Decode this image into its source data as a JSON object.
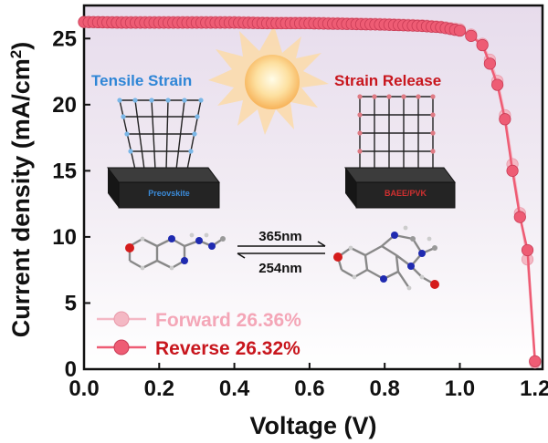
{
  "chart_data": {
    "type": "line",
    "xlabel": "Voltage (V)",
    "ylabel": "Current density (mA/cm2)",
    "xlim": [
      0.0,
      1.22
    ],
    "ylim": [
      0,
      27.5
    ],
    "x_ticks": [
      "0.0",
      "0.2",
      "0.4",
      "0.6",
      "0.8",
      "1.0",
      "1.2"
    ],
    "y_ticks": [
      "0",
      "5",
      "10",
      "15",
      "20",
      "25"
    ],
    "grid": false,
    "legend_position": "bottom-left",
    "series": [
      {
        "name": "Forward 26.36%",
        "color": "#f4b8c4",
        "x": [
          0.0,
          0.1,
          0.2,
          0.3,
          0.4,
          0.5,
          0.6,
          0.7,
          0.8,
          0.9,
          0.95,
          1.0,
          1.03,
          1.06,
          1.08,
          1.1,
          1.12,
          1.14,
          1.16,
          1.18,
          1.2
        ],
        "y": [
          26.25,
          26.25,
          26.25,
          26.25,
          26.25,
          26.2,
          26.2,
          26.15,
          26.1,
          26.0,
          25.9,
          25.7,
          25.3,
          24.6,
          23.4,
          21.8,
          19.2,
          15.5,
          11.8,
          8.3,
          0.5
        ]
      },
      {
        "name": "Reverse 26.32%",
        "color": "#ee5c74",
        "x": [
          0.0,
          0.1,
          0.2,
          0.3,
          0.4,
          0.5,
          0.6,
          0.7,
          0.8,
          0.9,
          0.95,
          1.0,
          1.03,
          1.06,
          1.08,
          1.1,
          1.12,
          1.14,
          1.16,
          1.18,
          1.2
        ],
        "y": [
          26.25,
          26.2,
          26.2,
          26.2,
          26.2,
          26.15,
          26.15,
          26.1,
          26.05,
          25.95,
          25.85,
          25.6,
          25.2,
          24.5,
          23.1,
          21.5,
          18.9,
          15.0,
          11.5,
          9.0,
          0.6
        ]
      }
    ]
  },
  "inset": {
    "left_title": "Tensile Strain",
    "right_title": "Strain Release",
    "left_box": "Preovskite",
    "right_box": "BAEE/PVK",
    "arrow_top": "365nm",
    "arrow_bottom": "254nm",
    "left_title_color": "#2f86d6",
    "right_title_color": "#c8161d"
  },
  "legend": {
    "forward_label": "Forward 26.36%",
    "reverse_label": "Reverse 26.32%"
  }
}
